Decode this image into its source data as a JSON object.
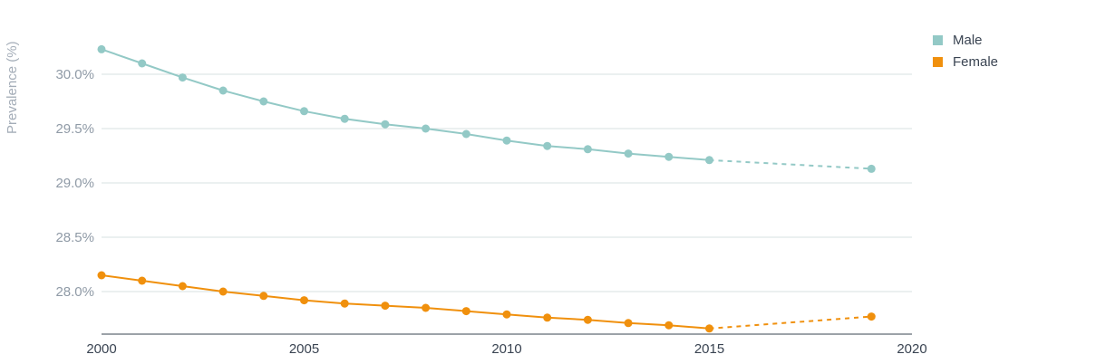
{
  "chart_data": {
    "type": "line",
    "ylabel": "Prevalence (%)",
    "xlim": [
      2000,
      2020
    ],
    "ylim": [
      27.6,
      30.35
    ],
    "x_ticks": [
      "2000",
      "2005",
      "2010",
      "2015",
      "2020"
    ],
    "y_ticks": [
      "28.0%",
      "28.5%",
      "29.0%",
      "29.5%",
      "30.0%"
    ],
    "y_tick_values": [
      28.0,
      28.5,
      29.0,
      29.5,
      30.0
    ],
    "x_tick_values": [
      2000,
      2005,
      2010,
      2015,
      2020
    ],
    "grid": true,
    "legend_position": "top-right",
    "series": [
      {
        "name": "Male",
        "color": "#93c9c6",
        "x": [
          2000,
          2001,
          2002,
          2003,
          2004,
          2005,
          2006,
          2007,
          2008,
          2009,
          2010,
          2011,
          2012,
          2013,
          2014,
          2015,
          2019
        ],
        "values": [
          30.23,
          30.1,
          29.97,
          29.85,
          29.75,
          29.66,
          29.59,
          29.54,
          29.5,
          29.45,
          29.39,
          29.34,
          29.31,
          29.27,
          29.24,
          29.21,
          29.13
        ],
        "projected_from_index": 15
      },
      {
        "name": "Female",
        "color": "#f0900d",
        "x": [
          2000,
          2001,
          2002,
          2003,
          2004,
          2005,
          2006,
          2007,
          2008,
          2009,
          2010,
          2011,
          2012,
          2013,
          2014,
          2015,
          2019
        ],
        "values": [
          28.15,
          28.1,
          28.05,
          28.0,
          27.96,
          27.92,
          27.89,
          27.87,
          27.85,
          27.82,
          27.79,
          27.76,
          27.74,
          27.71,
          27.69,
          27.66,
          27.77
        ],
        "projected_from_index": 15
      }
    ]
  }
}
